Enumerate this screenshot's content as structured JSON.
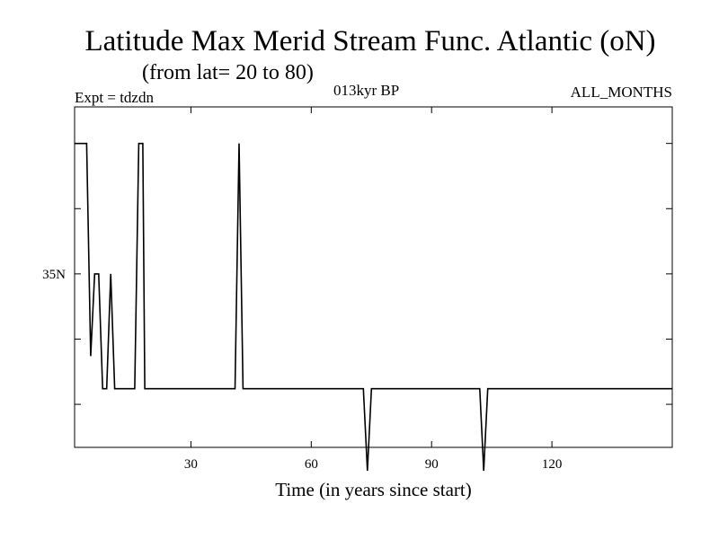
{
  "chart_data": {
    "type": "line",
    "title": "Latitude Max Merid Stream Func. Atlantic (oN)",
    "subtitle": "(from lat= 20 to 80)",
    "header_left": "Expt = tdzdn",
    "header_center": "013kyr BP",
    "header_right": "ALL_MONTHS",
    "xlabel": "Time (in years since start)",
    "ylabel": "",
    "xlim": [
      1,
      150
    ],
    "ylim": [
      21.7,
      47.8
    ],
    "xticks": [
      30,
      60,
      90,
      120
    ],
    "xtick_labels": [
      "30",
      "60",
      "90",
      "120"
    ],
    "yticks": [
      25,
      30,
      35,
      40,
      45
    ],
    "ytick_labels": [
      "",
      "",
      "35N",
      "",
      ""
    ],
    "grid": false,
    "series": [
      {
        "color": "#000000",
        "x": [
          1,
          4,
          5,
          6,
          7,
          8,
          9,
          10,
          11,
          11.5,
          16,
          17,
          18,
          18.5,
          41,
          42,
          43,
          73,
          74,
          75,
          98,
          102,
          103,
          104,
          150
        ],
        "y": [
          45.0,
          45.0,
          28.7,
          35.0,
          35.0,
          26.2,
          26.2,
          35.0,
          26.2,
          26.2,
          26.2,
          45.0,
          45.0,
          26.2,
          26.2,
          45.0,
          26.2,
          26.2,
          19.9,
          26.2,
          26.2,
          26.2,
          19.9,
          26.2,
          26.2
        ]
      }
    ]
  }
}
